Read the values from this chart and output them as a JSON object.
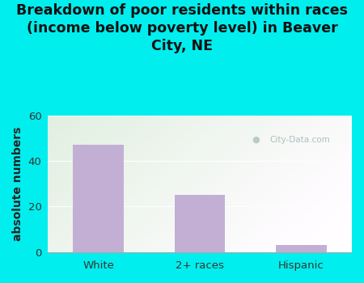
{
  "categories": [
    "White",
    "2+ races",
    "Hispanic"
  ],
  "values": [
    47,
    25,
    3
  ],
  "bar_color": "#c4afd4",
  "title_line1": "Breakdown of poor residents within races",
  "title_line2": "(income below poverty level) in Beaver",
  "title_line3": "City, NE",
  "ylabel": "absolute numbers",
  "ylim": [
    0,
    60
  ],
  "yticks": [
    0,
    20,
    40,
    60
  ],
  "bg_outer": "#00eeee",
  "bg_plot_topleft": "#d8edd8",
  "bg_plot_topright": "#eaf5f5",
  "bg_plot_bottom": "#f0faf0",
  "watermark": "City-Data.com",
  "title_fontsize": 12.5,
  "ylabel_fontsize": 10,
  "tick_fontsize": 9.5,
  "title_color": "#111111",
  "tick_color": "#333333",
  "grid_color": "#cccccc",
  "spine_color": "#aaaaaa"
}
